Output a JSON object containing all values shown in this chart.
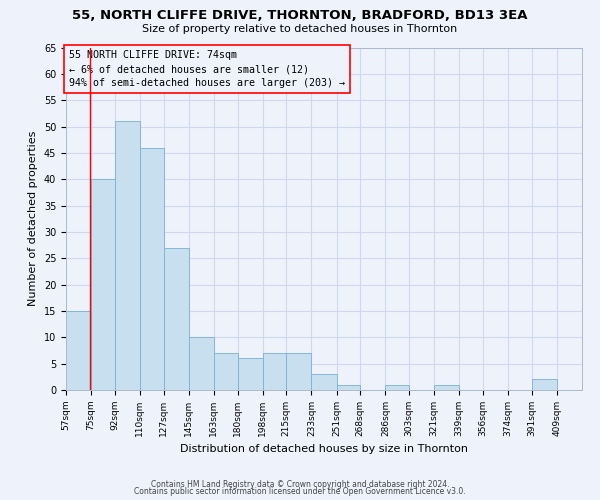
{
  "title": "55, NORTH CLIFFE DRIVE, THORNTON, BRADFORD, BD13 3EA",
  "subtitle": "Size of property relative to detached houses in Thornton",
  "xlabel": "Distribution of detached houses by size in Thornton",
  "ylabel": "Number of detached properties",
  "bar_left_edges": [
    57,
    75,
    92,
    110,
    127,
    145,
    163,
    180,
    198,
    215,
    233,
    251,
    268,
    286,
    303,
    321,
    339,
    356,
    374,
    391
  ],
  "bar_widths": [
    18,
    17,
    18,
    17,
    18,
    18,
    17,
    18,
    17,
    18,
    18,
    17,
    18,
    17,
    18,
    18,
    17,
    18,
    17,
    18
  ],
  "bar_heights": [
    15,
    40,
    51,
    46,
    27,
    10,
    7,
    6,
    7,
    7,
    3,
    1,
    0,
    1,
    0,
    1,
    0,
    0,
    0,
    2
  ],
  "bar_color": "#c8dff0",
  "bar_edgecolor": "#7ab0d4",
  "xtick_labels": [
    "57sqm",
    "75sqm",
    "92sqm",
    "110sqm",
    "127sqm",
    "145sqm",
    "163sqm",
    "180sqm",
    "198sqm",
    "215sqm",
    "233sqm",
    "251sqm",
    "268sqm",
    "286sqm",
    "303sqm",
    "321sqm",
    "339sqm",
    "356sqm",
    "374sqm",
    "391sqm",
    "409sqm"
  ],
  "xtick_positions": [
    57,
    75,
    92,
    110,
    127,
    145,
    163,
    180,
    198,
    215,
    233,
    251,
    268,
    286,
    303,
    321,
    339,
    356,
    374,
    391,
    409
  ],
  "ylim": [
    0,
    65
  ],
  "yticks": [
    0,
    5,
    10,
    15,
    20,
    25,
    30,
    35,
    40,
    45,
    50,
    55,
    60,
    65
  ],
  "xlim_left": 57,
  "xlim_right": 427,
  "redline_x": 74,
  "annotation_title": "55 NORTH CLIFFE DRIVE: 74sqm",
  "annotation_line1": "← 6% of detached houses are smaller (12)",
  "annotation_line2": "94% of semi-detached houses are larger (203) →",
  "background_color": "#eef2fb",
  "grid_color": "#d0d8ee",
  "footer_line1": "Contains HM Land Registry data © Crown copyright and database right 2024.",
  "footer_line2": "Contains public sector information licensed under the Open Government Licence v3.0."
}
